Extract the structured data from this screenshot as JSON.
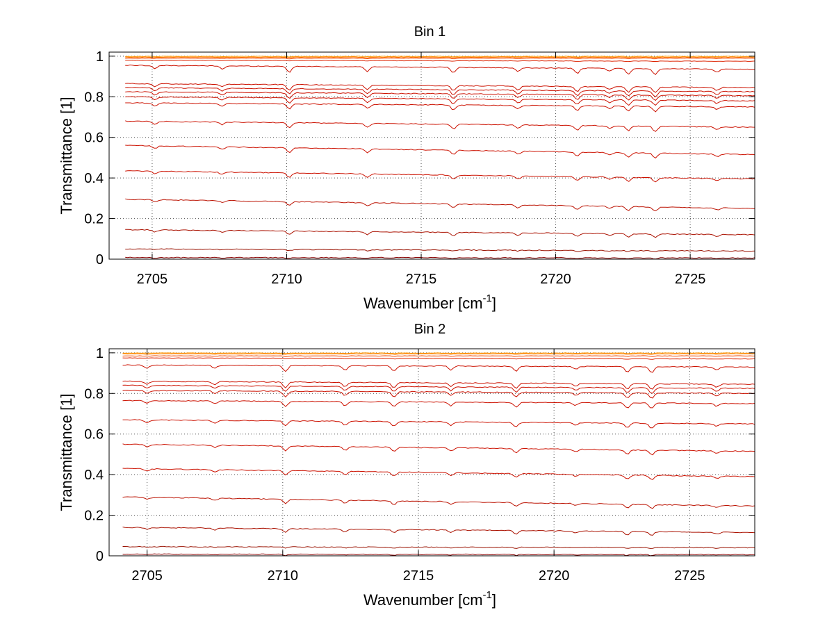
{
  "chart_data": [
    {
      "type": "line",
      "title": "Bin 1",
      "xlabel": "Wavenumber [cm",
      "xlabel_sup": "-1",
      "xlabel_suffix": "]",
      "ylabel": "Transmittance [1]",
      "xlim": [
        2703.4,
        2727.4
      ],
      "ylim": [
        0,
        1.02
      ],
      "xticks": [
        2705,
        2710,
        2715,
        2720,
        2725
      ],
      "yticks": [
        0,
        0.2,
        0.4,
        0.6,
        0.8,
        1
      ],
      "ytick_labels": [
        "0",
        "0.2",
        "0.4",
        "0.6",
        "0.8",
        "1"
      ],
      "grid": true,
      "x_start": 2704.0,
      "x_end": 2727.4,
      "dip_positions": [
        2705.1,
        2707.6,
        2710.1,
        2713.0,
        2716.2,
        2718.6,
        2720.8,
        2722.0,
        2722.7,
        2723.7,
        2726.0
      ],
      "series": [
        {
          "start": 0.999,
          "end": 0.999,
          "color": "#ff9900"
        },
        {
          "start": 0.995,
          "end": 0.995,
          "color": "#ff7700"
        },
        {
          "start": 0.99,
          "end": 0.99,
          "color": "#ee4400"
        },
        {
          "start": 0.98,
          "end": 0.975,
          "color": "#dd2200"
        },
        {
          "start": 0.955,
          "end": 0.935,
          "color": "#cc1100"
        },
        {
          "start": 0.865,
          "end": 0.845,
          "color": "#cc1100"
        },
        {
          "start": 0.845,
          "end": 0.825,
          "color": "#cc1100"
        },
        {
          "start": 0.825,
          "end": 0.805,
          "color": "#cc1100"
        },
        {
          "start": 0.8,
          "end": 0.78,
          "color": "#cc1100"
        },
        {
          "start": 0.77,
          "end": 0.75,
          "color": "#cc1100"
        },
        {
          "start": 0.68,
          "end": 0.65,
          "color": "#cc1100"
        },
        {
          "start": 0.56,
          "end": 0.515,
          "color": "#cc1100"
        },
        {
          "start": 0.435,
          "end": 0.395,
          "color": "#cc1100"
        },
        {
          "start": 0.295,
          "end": 0.25,
          "color": "#bb1100"
        },
        {
          "start": 0.145,
          "end": 0.12,
          "color": "#aa1100"
        },
        {
          "start": 0.05,
          "end": 0.04,
          "color": "#991100"
        },
        {
          "start": 0.008,
          "end": 0.006,
          "color": "#880000"
        }
      ]
    },
    {
      "type": "line",
      "title": "Bin 2",
      "xlabel": "Wavenumber [cm",
      "xlabel_sup": "-1",
      "xlabel_suffix": "]",
      "ylabel": "Transmittance [1]",
      "xlim": [
        2703.6,
        2727.4
      ],
      "ylim": [
        0,
        1.02
      ],
      "xticks": [
        2705,
        2710,
        2715,
        2720,
        2725
      ],
      "yticks": [
        0,
        0.2,
        0.4,
        0.6,
        0.8,
        1
      ],
      "ytick_labels": [
        "0",
        "0.2",
        "0.4",
        "0.6",
        "0.8",
        "1"
      ],
      "grid": true,
      "x_start": 2704.1,
      "x_end": 2727.4,
      "dip_positions": [
        2705.0,
        2707.5,
        2710.1,
        2712.3,
        2714.1,
        2716.2,
        2718.6,
        2720.8,
        2722.7,
        2723.6,
        2726.0
      ],
      "series": [
        {
          "start": 0.999,
          "end": 0.999,
          "color": "#ff9900"
        },
        {
          "start": 0.995,
          "end": 0.995,
          "color": "#ff7700"
        },
        {
          "start": 0.985,
          "end": 0.985,
          "color": "#ee4400"
        },
        {
          "start": 0.975,
          "end": 0.97,
          "color": "#dd2200"
        },
        {
          "start": 0.94,
          "end": 0.93,
          "color": "#cc1100"
        },
        {
          "start": 0.86,
          "end": 0.845,
          "color": "#cc1100"
        },
        {
          "start": 0.84,
          "end": 0.825,
          "color": "#cc1100"
        },
        {
          "start": 0.815,
          "end": 0.8,
          "color": "#cc1100"
        },
        {
          "start": 0.765,
          "end": 0.75,
          "color": "#cc1100"
        },
        {
          "start": 0.67,
          "end": 0.65,
          "color": "#cc1100"
        },
        {
          "start": 0.55,
          "end": 0.515,
          "color": "#cc1100"
        },
        {
          "start": 0.43,
          "end": 0.39,
          "color": "#cc1100"
        },
        {
          "start": 0.29,
          "end": 0.245,
          "color": "#bb1100"
        },
        {
          "start": 0.14,
          "end": 0.115,
          "color": "#aa1100"
        },
        {
          "start": 0.045,
          "end": 0.04,
          "color": "#991100"
        },
        {
          "start": 0.008,
          "end": 0.006,
          "color": "#880000"
        }
      ]
    }
  ]
}
